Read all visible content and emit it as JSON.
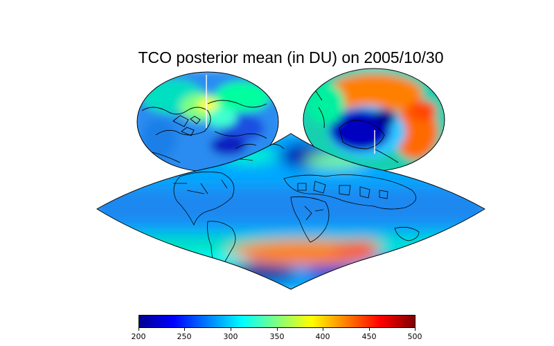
{
  "title": "TCO posterior mean (in DU) on 2005/10/30",
  "colorbar": {
    "min": 200,
    "max": 500,
    "ticks": [
      "200",
      "250",
      "300",
      "350",
      "400",
      "450",
      "500"
    ],
    "colors": [
      "#00008f",
      "#0000ff",
      "#007fff",
      "#00ffff",
      "#7fff7f",
      "#ffff00",
      "#ff7f00",
      "#ff0000",
      "#800000"
    ]
  }
}
